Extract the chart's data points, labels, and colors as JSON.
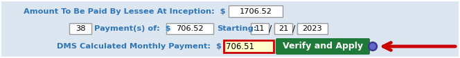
{
  "bg_color": "#dce6f1",
  "label_color": "#2e75b6",
  "text_color": "#000000",
  "green_btn_color": "#1f7a3a",
  "green_btn_text": "#ffffff",
  "arrow_color": "#cc0000",
  "input_border": "#999999",
  "red_border": "#cc0000",
  "yellow_bg": "#ffffcc",
  "row1_label": "Amount To Be Paid By Lessee At Inception:  $",
  "row1_value": "1706.52",
  "row2_num": "38",
  "row2_label": "Payment(s) of:  $",
  "row2_value": "706.52",
  "row2_starting": "Starting:",
  "row2_d1": "11",
  "row2_d2": "21",
  "row2_d3": "2023",
  "row3_label": "DMS Calculated Monthly Payment:  $",
  "row3_value": "706.51",
  "btn_text": "Verify and Apply",
  "fig_width": 6.64,
  "fig_height": 0.85,
  "dpi": 100
}
